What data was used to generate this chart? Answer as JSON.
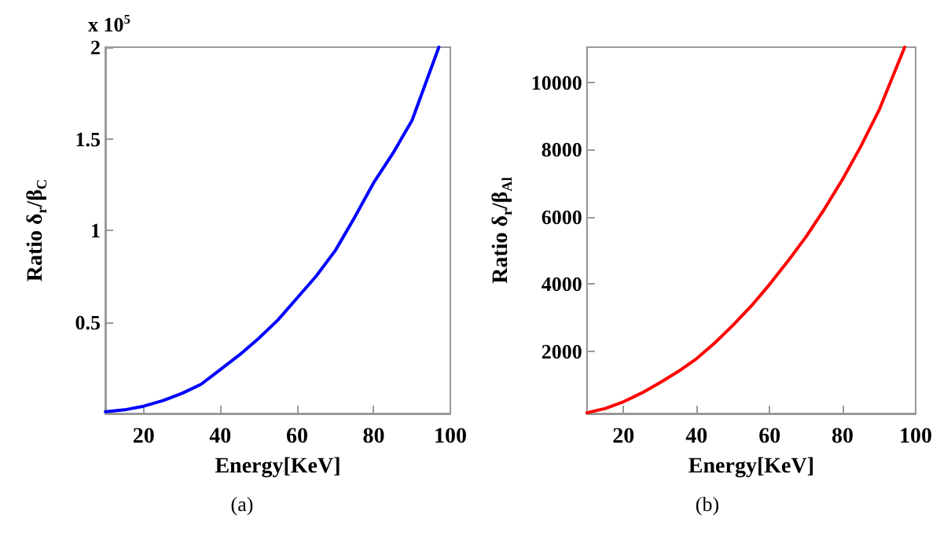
{
  "chart_data": [
    {
      "type": "line",
      "xlabel": "Energy[KeV]",
      "ylabel": "Ratio δ$_{r}$/β$_{C}$",
      "annotations": [
        "x 10$^{5}$",
        "(a)"
      ],
      "x": [
        10,
        15,
        20,
        25,
        30,
        35,
        40,
        45,
        50,
        55,
        60,
        65,
        70,
        75,
        80,
        85,
        90,
        97
      ],
      "series": [
        {
          "color": "#0000ff",
          "values": [
            0.01,
            0.02,
            0.04,
            0.07,
            0.11,
            0.16,
            0.24,
            0.32,
            0.41,
            0.51,
            0.63,
            0.75,
            0.89,
            1.07,
            1.26,
            1.42,
            1.6,
            2.0
          ]
        }
      ],
      "xlim": [
        10,
        100
      ],
      "ylim": [
        0,
        2
      ],
      "xticks": [
        20,
        40,
        60,
        80,
        100
      ],
      "yticks": [
        0.5,
        1,
        1.5,
        2
      ],
      "grid": false,
      "marker": "none",
      "line_style": "solid"
    },
    {
      "type": "line",
      "xlabel": "Energy[KeV]",
      "ylabel": "Ratio δ$_{r}$/β$_{Al}$",
      "annotations": [
        "(b)"
      ],
      "x": [
        10,
        15,
        20,
        25,
        30,
        35,
        40,
        45,
        50,
        55,
        60,
        65,
        70,
        75,
        80,
        85,
        90,
        97
      ],
      "series": [
        {
          "color": "#ff0000",
          "values": [
            170,
            300,
            500,
            760,
            1070,
            1400,
            1780,
            2250,
            2780,
            3350,
            3990,
            4680,
            5410,
            6230,
            7120,
            8100,
            9180,
            11050
          ]
        }
      ],
      "xlim": [
        10,
        100
      ],
      "ylim": [
        150,
        11050
      ],
      "xticks": [
        20,
        40,
        60,
        80,
        100
      ],
      "yticks": [
        2000,
        4000,
        6000,
        8000,
        10000
      ],
      "grid": false,
      "marker": "none",
      "line_style": "solid"
    }
  ]
}
